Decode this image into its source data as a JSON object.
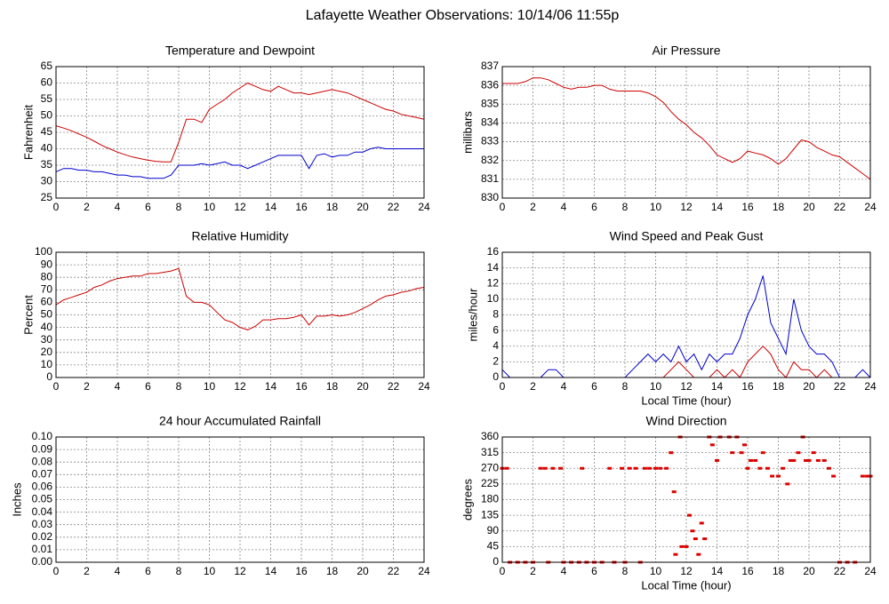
{
  "title": "Lafayette Weather Observations: 10/14/06 11:55p",
  "chart_data": [
    {
      "type": "line",
      "title": "Temperature and Dewpoint",
      "ylabel": "Fahrenheit",
      "x": [
        0,
        0.5,
        1,
        1.5,
        2,
        2.5,
        3,
        3.5,
        4,
        4.5,
        5,
        5.5,
        6,
        6.5,
        7,
        7.5,
        8,
        8.5,
        9,
        9.5,
        10,
        10.5,
        11,
        11.5,
        12,
        12.5,
        13,
        13.5,
        14,
        14.5,
        15,
        15.5,
        16,
        16.5,
        17,
        17.5,
        18,
        18.5,
        19,
        19.5,
        20,
        20.5,
        21,
        21.5,
        22,
        22.5,
        23,
        23.5,
        24
      ],
      "series": [
        {
          "color": "#cc0000",
          "values": [
            47,
            46.3,
            45.5,
            44.5,
            43.5,
            42.3,
            41,
            40,
            39,
            38.2,
            37.5,
            37,
            36.5,
            36.2,
            36,
            36,
            42,
            49,
            49,
            48,
            52,
            53.5,
            55,
            57,
            58.5,
            60,
            59,
            58,
            57.5,
            59,
            58,
            57,
            57,
            56.5,
            57,
            57.5,
            58,
            57.5,
            57,
            56,
            55,
            54,
            53,
            52,
            51.5,
            50.5,
            50,
            49.5,
            49
          ]
        },
        {
          "color": "#0000cc",
          "values": [
            33,
            34,
            34,
            33.5,
            33.5,
            33,
            33,
            32.5,
            32,
            32,
            31.5,
            31.5,
            31,
            31,
            31,
            32,
            35,
            35,
            35,
            35.5,
            35,
            35.5,
            36,
            35,
            35,
            34,
            35,
            36,
            37,
            38,
            38,
            38,
            38,
            34,
            38,
            38.5,
            37.5,
            38,
            38,
            39,
            39,
            40,
            40.5,
            40,
            40,
            40,
            40,
            40,
            40
          ]
        }
      ],
      "xlim": [
        0,
        24
      ],
      "xticks": [
        0,
        2,
        4,
        6,
        8,
        10,
        12,
        14,
        16,
        18,
        20,
        22,
        24
      ],
      "ylim": [
        25,
        65
      ],
      "yticks": [
        25,
        30,
        35,
        40,
        45,
        50,
        55,
        60,
        65
      ],
      "grid": true
    },
    {
      "type": "line",
      "title": "Air Pressure",
      "ylabel": "millibars",
      "x": [
        0,
        0.5,
        1,
        1.5,
        2,
        2.5,
        3,
        3.5,
        4,
        4.5,
        5,
        5.5,
        6,
        6.5,
        7,
        7.5,
        8,
        8.5,
        9,
        9.5,
        10,
        10.5,
        11,
        11.5,
        12,
        12.5,
        13,
        13.5,
        14,
        14.5,
        15,
        15.5,
        16,
        16.5,
        17,
        17.5,
        18,
        18.5,
        19,
        19.5,
        20,
        20.5,
        21,
        21.5,
        22,
        22.5,
        23,
        23.5,
        24
      ],
      "series": [
        {
          "color": "#cc0000",
          "values": [
            836.1,
            836.1,
            836.1,
            836.2,
            836.4,
            836.4,
            836.3,
            836.1,
            835.9,
            835.8,
            835.9,
            835.9,
            836,
            836,
            835.8,
            835.7,
            835.7,
            835.7,
            835.7,
            835.6,
            835.4,
            835.1,
            834.6,
            834.2,
            833.9,
            833.5,
            833.2,
            832.8,
            832.3,
            832.1,
            831.9,
            832.1,
            832.5,
            832.4,
            832.3,
            832.1,
            831.8,
            832.1,
            832.6,
            833.1,
            833,
            832.7,
            832.5,
            832.3,
            832.2,
            831.9,
            831.6,
            831.3,
            831
          ]
        }
      ],
      "xlim": [
        0,
        24
      ],
      "xticks": [
        0,
        2,
        4,
        6,
        8,
        10,
        12,
        14,
        16,
        18,
        20,
        22,
        24
      ],
      "ylim": [
        830,
        837
      ],
      "yticks": [
        830,
        831,
        832,
        833,
        834,
        835,
        836,
        837
      ],
      "grid": true
    },
    {
      "type": "line",
      "title": "Relative Humidity",
      "ylabel": "Percent",
      "x": [
        0,
        0.5,
        1,
        1.5,
        2,
        2.5,
        3,
        3.5,
        4,
        4.5,
        5,
        5.5,
        6,
        6.5,
        7,
        7.5,
        8,
        8.5,
        9,
        9.5,
        10,
        10.5,
        11,
        11.5,
        12,
        12.5,
        13,
        13.5,
        14,
        14.5,
        15,
        15.5,
        16,
        16.5,
        17,
        17.5,
        18,
        18.5,
        19,
        19.5,
        20,
        20.5,
        21,
        21.5,
        22,
        22.5,
        23,
        23.5,
        24
      ],
      "series": [
        {
          "color": "#cc0000",
          "values": [
            58,
            62,
            64,
            66,
            68,
            72,
            74,
            77,
            79,
            80,
            81,
            81,
            83,
            83,
            84,
            85,
            87,
            65,
            60,
            60,
            58,
            52,
            46,
            44,
            40,
            38,
            41,
            46,
            46,
            47,
            47,
            48,
            50,
            42,
            49,
            49,
            50,
            49,
            50,
            52,
            55,
            58,
            62,
            65,
            66,
            68,
            69,
            71,
            72
          ]
        }
      ],
      "xlim": [
        0,
        24
      ],
      "xticks": [
        0,
        2,
        4,
        6,
        8,
        10,
        12,
        14,
        16,
        18,
        20,
        22,
        24
      ],
      "ylim": [
        0,
        100
      ],
      "yticks": [
        0,
        10,
        20,
        30,
        40,
        50,
        60,
        70,
        80,
        90,
        100
      ],
      "grid": true
    },
    {
      "type": "line",
      "title": "Wind Speed and Peak Gust",
      "ylabel": "miles/hour",
      "xlabel": "Local Time (hour)",
      "x": [
        0,
        0.5,
        1,
        1.5,
        2,
        2.5,
        3,
        3.5,
        4,
        4.5,
        5,
        5.5,
        6,
        6.5,
        7,
        7.5,
        8,
        8.5,
        9,
        9.5,
        10,
        10.5,
        11,
        11.5,
        12,
        12.5,
        13,
        13.5,
        14,
        14.5,
        15,
        15.5,
        16,
        16.5,
        17,
        17.5,
        18,
        18.5,
        19,
        19.5,
        20,
        20.5,
        21,
        21.5,
        22,
        22.5,
        23,
        23.5,
        24
      ],
      "series": [
        {
          "color": "#0000cc",
          "values": [
            1,
            0,
            0,
            0,
            0,
            0,
            1,
            1,
            0,
            0,
            0,
            0,
            0,
            0,
            0,
            0,
            0,
            1,
            2,
            3,
            2,
            3,
            2,
            4,
            2,
            3,
            1,
            3,
            2,
            3,
            3,
            5,
            8,
            10,
            13,
            7,
            5,
            3,
            10,
            6,
            4,
            3,
            3,
            2,
            0,
            0,
            0,
            1,
            0
          ]
        },
        {
          "color": "#cc0000",
          "values": [
            0,
            0,
            0,
            0,
            0,
            0,
            0,
            0,
            0,
            0,
            0,
            0,
            0,
            0,
            0,
            0,
            0,
            0,
            0,
            0,
            0,
            0,
            1,
            2,
            1,
            0,
            0,
            0,
            1,
            0,
            1,
            0,
            2,
            3,
            4,
            3,
            1,
            0,
            2,
            1,
            1,
            0,
            1,
            0,
            0,
            0,
            0,
            0,
            0
          ]
        }
      ],
      "xlim": [
        0,
        24
      ],
      "xticks": [
        0,
        2,
        4,
        6,
        8,
        10,
        12,
        14,
        16,
        18,
        20,
        22,
        24
      ],
      "ylim": [
        0,
        16
      ],
      "yticks": [
        0,
        2,
        4,
        6,
        8,
        10,
        12,
        14,
        16
      ],
      "grid": true
    },
    {
      "type": "line",
      "title": "24 hour Accumulated Rainfall",
      "ylabel": "Inches",
      "x": [
        0,
        24
      ],
      "series": [
        {
          "color": "#cc0000",
          "values": [
            0,
            0
          ]
        }
      ],
      "xlim": [
        0,
        24
      ],
      "xticks": [
        0,
        2,
        4,
        6,
        8,
        10,
        12,
        14,
        16,
        18,
        20,
        22,
        24
      ],
      "ylim": [
        0,
        0.1
      ],
      "yticks": [
        {
          "value": 0,
          "label": "0.00"
        },
        {
          "value": 0.01,
          "label": "0.01"
        },
        {
          "value": 0.02,
          "label": "0.02"
        },
        {
          "value": 0.03,
          "label": "0.03"
        },
        {
          "value": 0.04,
          "label": "0.04"
        },
        {
          "value": 0.05,
          "label": "0.05"
        },
        {
          "value": 0.06,
          "label": "0.06"
        },
        {
          "value": 0.07,
          "label": "0.07"
        },
        {
          "value": 0.08,
          "label": "0.08"
        },
        {
          "value": 0.09,
          "label": "0.09"
        },
        {
          "value": 0.1,
          "label": "0.10"
        }
      ],
      "grid": true
    },
    {
      "type": "scatter",
      "title": "Wind Direction",
      "ylabel": "degrees",
      "xlabel": "Local Time (hour)",
      "x": [
        0,
        0.3,
        0.5,
        1,
        1.5,
        2,
        2.5,
        2.8,
        3,
        3.3,
        3.8,
        4,
        4.5,
        5,
        5.2,
        5.5,
        6,
        6.5,
        7,
        7.3,
        7.8,
        8,
        8.3,
        8.7,
        9,
        9.3,
        9.6,
        10,
        10.3,
        10.7,
        11,
        11.2,
        11.3,
        11.6,
        11.7,
        12,
        12.2,
        12.4,
        12.6,
        12.8,
        13,
        13.2,
        13.5,
        13.7,
        14,
        14.2,
        14.8,
        15,
        15.3,
        15.6,
        15.8,
        16,
        16.2,
        16.5,
        16.8,
        17,
        17.3,
        17.6,
        18,
        18.3,
        18.6,
        18.8,
        19,
        19.3,
        19.6,
        19.8,
        20,
        20.3,
        20.6,
        21,
        21.3,
        21.6,
        22,
        22.5,
        23,
        23.5,
        23.8,
        24
      ],
      "series": [
        {
          "color": "#dd0000",
          "values": [
            270,
            270,
            0,
            0,
            0,
            0,
            270,
            270,
            0,
            270,
            270,
            0,
            0,
            0,
            270,
            0,
            0,
            0,
            270,
            0,
            270,
            0,
            270,
            270,
            0,
            270,
            270,
            270,
            270,
            270,
            315,
            202.5,
            22.5,
            360,
            45,
            45,
            135,
            90,
            67.5,
            22.5,
            112.5,
            67.5,
            360,
            337.5,
            292.5,
            360,
            360,
            315,
            360,
            315,
            337.5,
            270,
            292.5,
            292.5,
            270,
            315,
            270,
            247.5,
            247.5,
            270,
            225,
            292.5,
            292.5,
            315,
            360,
            292.5,
            292.5,
            315,
            292.5,
            292.5,
            270,
            247.5,
            0,
            0,
            0,
            247.5,
            247.5,
            247.5
          ]
        }
      ],
      "xlim": [
        0,
        24
      ],
      "xticks": [
        0,
        2,
        4,
        6,
        8,
        10,
        12,
        14,
        16,
        18,
        20,
        22,
        24
      ],
      "ylim": [
        0,
        360
      ],
      "yticks": [
        0,
        45,
        90,
        135,
        180,
        225,
        270,
        315,
        360
      ],
      "grid": true
    }
  ]
}
